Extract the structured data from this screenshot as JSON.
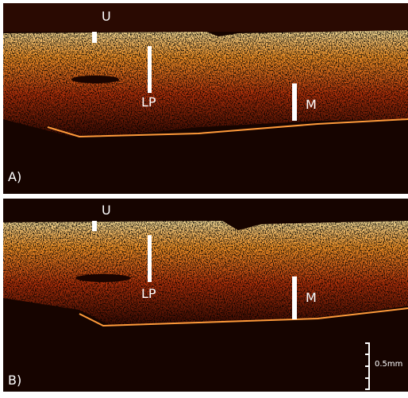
{
  "panels": [
    {
      "label": "A)",
      "u": "U",
      "lp": "LP",
      "m": "M"
    },
    {
      "label": "B)",
      "u": "U",
      "lp": "LP",
      "m": "M"
    }
  ],
  "scale_bar": "0.5mm"
}
